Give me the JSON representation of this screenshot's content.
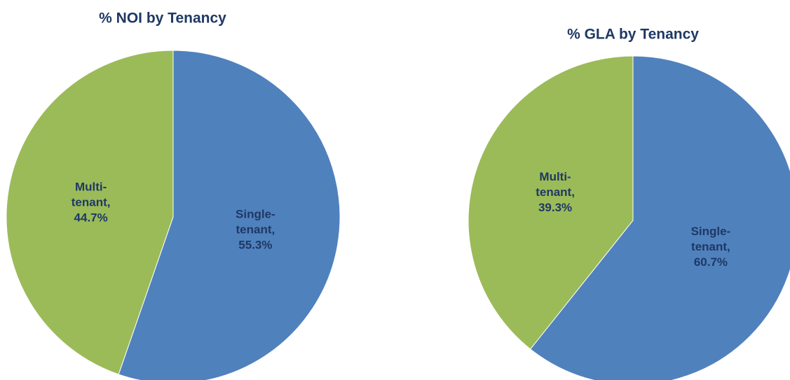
{
  "chart_data": [
    {
      "type": "pie",
      "title": "% NOI by Tenancy",
      "values": [
        55.3,
        44.7
      ],
      "value_labels": [
        "Single-tenant, 55.3%",
        "Multi-tenant, 44.7%"
      ],
      "colors": [
        "#4f81bd",
        "#9bbb59"
      ]
    },
    {
      "type": "pie",
      "title": "% GLA by Tenancy",
      "values": [
        60.7,
        39.3
      ],
      "value_labels": [
        "Single-tenant, 60.7%",
        "Multi-tenant, 39.3%"
      ],
      "colors": [
        "#4f81bd",
        "#9bbb59"
      ]
    }
  ]
}
